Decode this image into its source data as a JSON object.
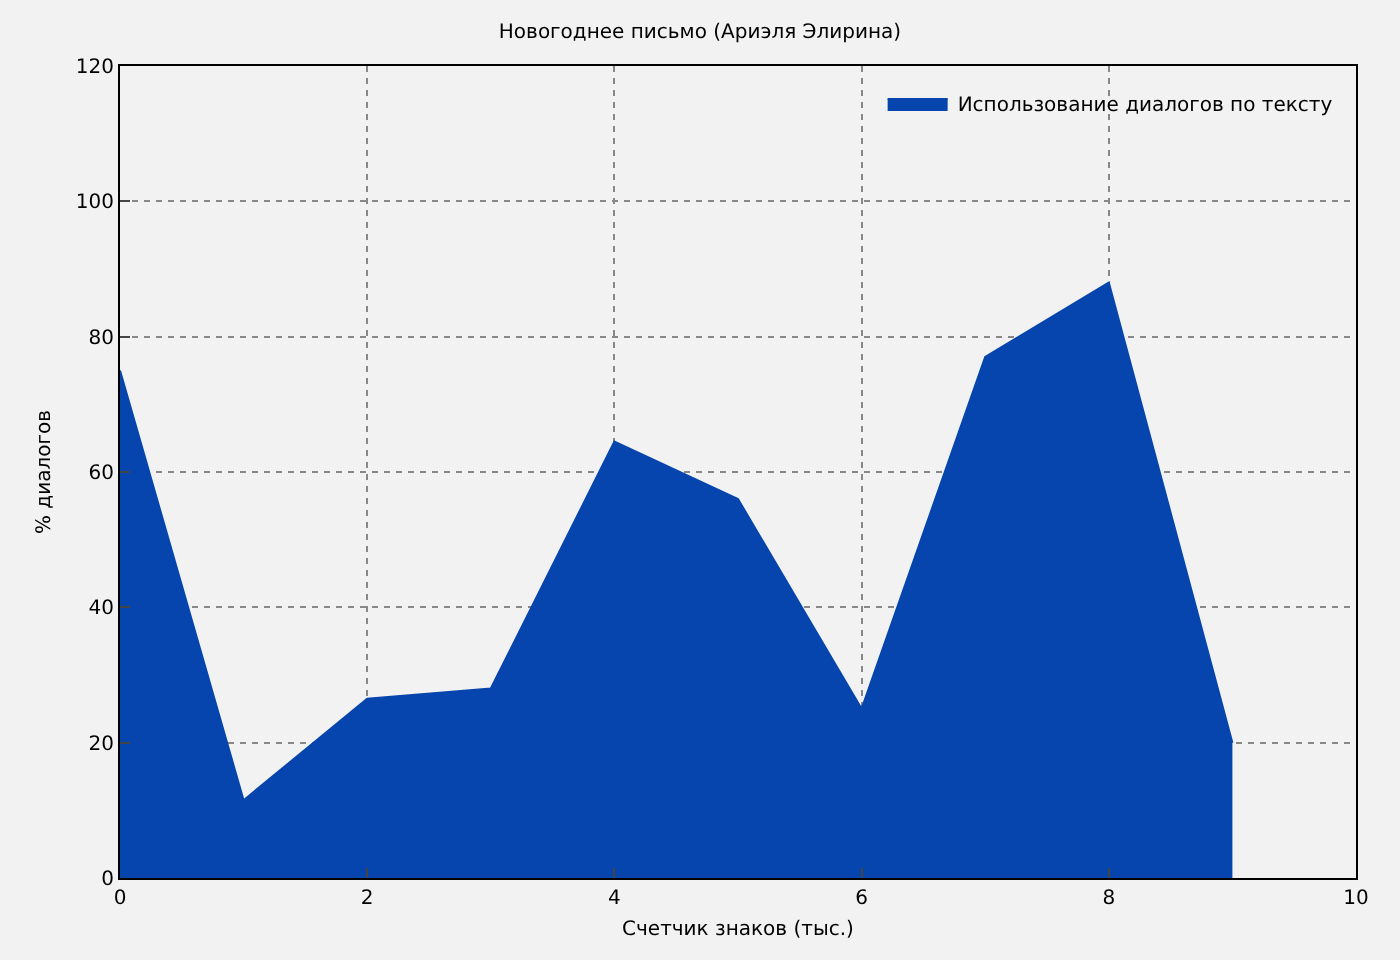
{
  "chart_data": {
    "type": "area",
    "title": "Новогоднее письмо (Ариэля Элирина)",
    "xlabel": "Счетчик знаков (тыс.)",
    "ylabel": "% диалогов",
    "x": [
      0,
      1,
      2,
      3,
      4,
      5,
      6,
      7,
      8,
      9
    ],
    "series": [
      {
        "name": "Использование диалогов по тексту",
        "color": "#0645ad",
        "values": [
          75,
          11.5,
          26.5,
          28,
          64.5,
          56,
          25,
          77,
          88,
          20
        ]
      }
    ],
    "xlim": [
      0,
      10
    ],
    "xticks": [
      0,
      2,
      4,
      6,
      8,
      10
    ],
    "ylim": [
      0,
      120
    ],
    "yticks": [
      0,
      20,
      40,
      60,
      80,
      100,
      120
    ],
    "grid": true,
    "legend": "top right"
  }
}
